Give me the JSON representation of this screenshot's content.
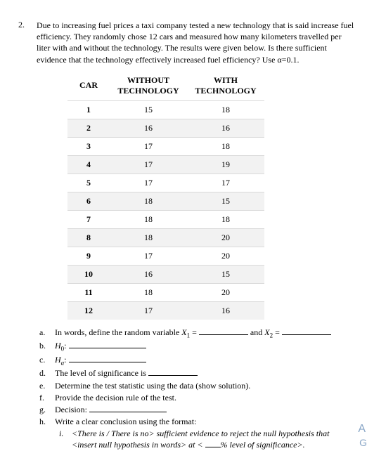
{
  "question": {
    "number": "2.",
    "text": "Due to increasing fuel prices a taxi company tested a new technology that is said increase fuel efficiency. They randomly chose 12 cars and measured how many kilometers travelled per liter with and without the technology. The results were given below. Is there sufficient evidence that the technology effectively increased fuel efficiency? Use α=0.1."
  },
  "table": {
    "headers": {
      "car": "CAR",
      "without": "WITHOUT TECHNOLOGY",
      "with": "WITH TECHNOLOGY"
    },
    "rows": [
      {
        "car": "1",
        "without": "15",
        "with": "18"
      },
      {
        "car": "2",
        "without": "16",
        "with": "16"
      },
      {
        "car": "3",
        "without": "17",
        "with": "18"
      },
      {
        "car": "4",
        "without": "17",
        "with": "19"
      },
      {
        "car": "5",
        "without": "17",
        "with": "17"
      },
      {
        "car": "6",
        "without": "18",
        "with": "15"
      },
      {
        "car": "7",
        "without": "18",
        "with": "18"
      },
      {
        "car": "8",
        "without": "18",
        "with": "20"
      },
      {
        "car": "9",
        "without": "17",
        "with": "20"
      },
      {
        "car": "10",
        "without": "16",
        "with": "15"
      },
      {
        "car": "11",
        "without": "18",
        "with": "20"
      },
      {
        "car": "12",
        "without": "17",
        "with": "16"
      }
    ]
  },
  "parts": {
    "a": {
      "letter": "a.",
      "pre": "In words, define the random variable ",
      "x1": "X",
      "x1sub": "1",
      "eq": " = ",
      "mid": " and ",
      "x2": "X",
      "x2sub": "2",
      "eq2": " = "
    },
    "b": {
      "letter": "b.",
      "H": "H",
      "sub": "0",
      "colon": ": "
    },
    "c": {
      "letter": "c.",
      "H": "H",
      "sub": "a",
      "colon": ": "
    },
    "d": {
      "letter": "d.",
      "text": "The level of significance is "
    },
    "e": {
      "letter": "e.",
      "text": "Determine the test statistic using the data (show solution)."
    },
    "f": {
      "letter": "f.",
      "text": "Provide the decision rule of the test."
    },
    "g": {
      "letter": "g.",
      "text": "Decision: "
    },
    "h": {
      "letter": "h.",
      "text": "Write a clear conclusion using the format:"
    },
    "hi": {
      "num": "i.",
      "seg1": "<There is / There is no> sufficient evidence to reject the null hypothesis that <insert null hypothesis in words> at < ",
      "seg2": "% level of significance>."
    }
  },
  "edge": {
    "a": "A",
    "g": "G"
  }
}
